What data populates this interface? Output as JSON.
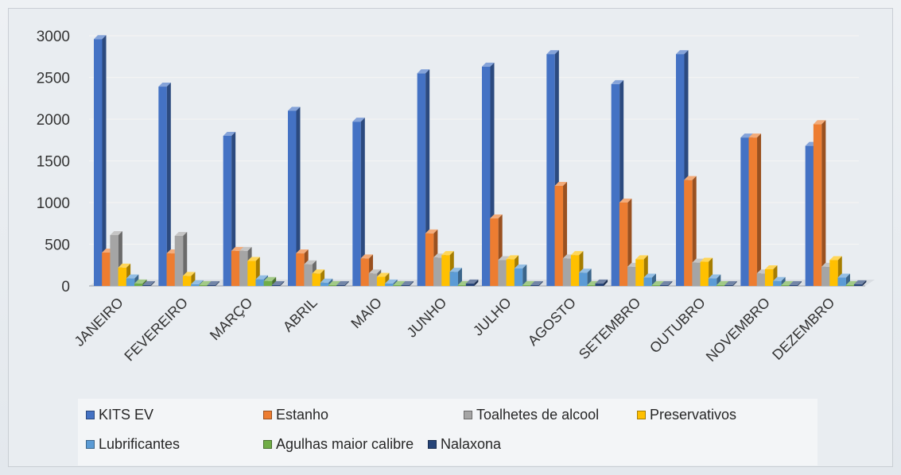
{
  "chart_data": {
    "type": "bar",
    "title": "",
    "xlabel": "",
    "ylabel": "",
    "ylim": [
      0,
      3000
    ],
    "yticks": [
      "0",
      "500",
      "1000",
      "1500",
      "2000",
      "2500",
      "3000"
    ],
    "grid": true,
    "legend_position": "bottom",
    "categories": [
      "JANEIRO",
      "FEVEREIRO",
      "MARÇO",
      "ABRIL",
      "MAIO",
      "JUNHO",
      "JULHO",
      "AGOSTO",
      "SETEMBRO",
      "OUTUBRO",
      "NOVEMBRO",
      "DEZEMBRO"
    ],
    "series": [
      {
        "name": "KITS EV",
        "color": "#4472c4",
        "values": [
          2960,
          2390,
          1800,
          2100,
          1970,
          2550,
          2630,
          2780,
          2420,
          2780,
          1780,
          1680
        ]
      },
      {
        "name": "Estanho",
        "color": "#ed7d31",
        "values": [
          400,
          390,
          420,
          390,
          330,
          630,
          810,
          1200,
          1000,
          1270,
          1780,
          1940
        ]
      },
      {
        "name": "Toalhetes de alcool",
        "color": "#a5a5a5",
        "values": [
          610,
          600,
          420,
          260,
          150,
          340,
          310,
          330,
          230,
          280,
          150,
          230
        ]
      },
      {
        "name": "Preservativos",
        "color": "#ffc000",
        "values": [
          220,
          120,
          300,
          150,
          110,
          370,
          320,
          370,
          320,
          290,
          200,
          310
        ]
      },
      {
        "name": "Lubrificantes",
        "color": "#5b9bd5",
        "values": [
          90,
          20,
          80,
          40,
          30,
          170,
          210,
          160,
          100,
          90,
          60,
          100
        ]
      },
      {
        "name": "Agulhas maior calibre",
        "color": "#70ad47",
        "values": [
          30,
          10,
          60,
          10,
          10,
          10,
          10,
          10,
          10,
          10,
          10,
          10
        ]
      },
      {
        "name": "Nalaxona",
        "color": "#264478",
        "values": [
          10,
          10,
          10,
          10,
          10,
          30,
          10,
          30,
          10,
          10,
          10,
          20
        ]
      }
    ]
  }
}
